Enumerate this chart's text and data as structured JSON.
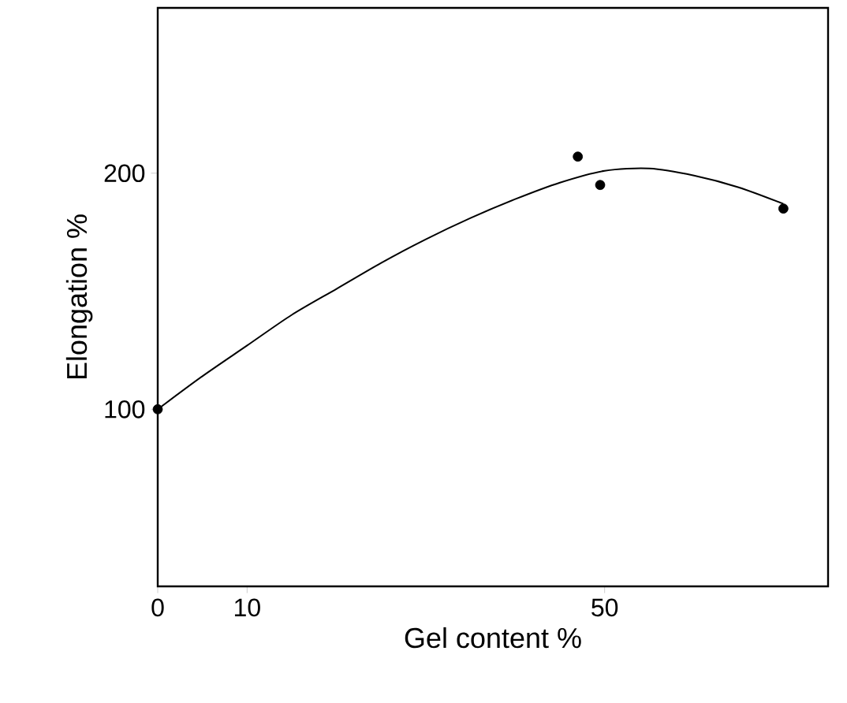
{
  "chart_data": {
    "type": "scatter",
    "xlabel": "Gel content %",
    "ylabel": "Elongation %",
    "xlim": [
      0,
      75
    ],
    "ylim": [
      25,
      270
    ],
    "xticks": [
      0,
      10,
      50
    ],
    "yticks": [
      100,
      200
    ],
    "grid": false,
    "series": [
      {
        "color": "#000000",
        "marker": "circle",
        "x": [
          0,
          47,
          49.5,
          70
        ],
        "values": [
          100,
          207,
          195,
          185
        ]
      },
      {
        "type": "line",
        "color": "#000000",
        "marker": "none",
        "line_style": "solid",
        "x": [
          0,
          5,
          10,
          15,
          20,
          25,
          30,
          35,
          40,
          45,
          50,
          55,
          60,
          65,
          70
        ],
        "values": [
          100,
          114,
          127,
          140,
          151,
          162,
          172,
          181,
          189,
          196,
          201,
          202,
          199,
          194,
          187
        ]
      }
    ]
  }
}
